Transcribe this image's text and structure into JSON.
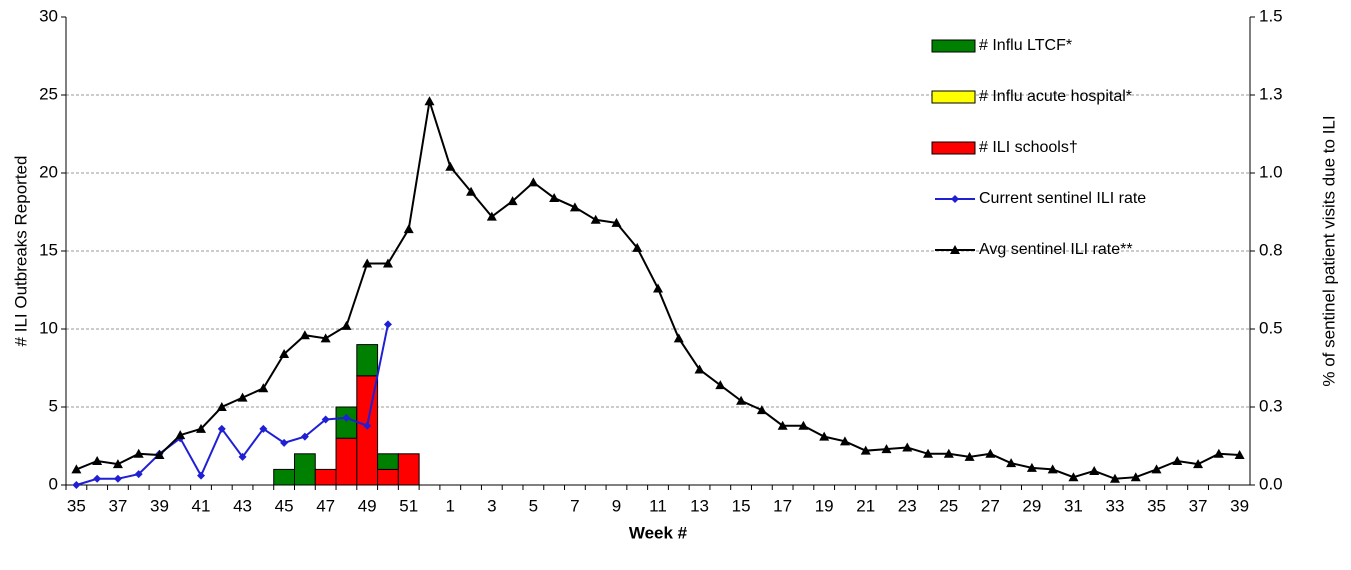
{
  "chart_data": {
    "type": "combo",
    "x_label": "Week #",
    "y_label": "# ILI Outbreaks Reported",
    "y2_label": "% of sentinel patient visits due to ILI",
    "y2_color": "#1f1fd6",
    "categories": [
      "35",
      null,
      "37",
      null,
      "39",
      null,
      "41",
      null,
      "43",
      null,
      "45",
      null,
      "47",
      null,
      "49",
      null,
      "51",
      null,
      "1",
      null,
      "3",
      null,
      "5",
      null,
      "7",
      null,
      "9",
      null,
      "11",
      null,
      "13",
      null,
      "15",
      null,
      "17",
      null,
      "19",
      null,
      "21",
      null,
      "23",
      null,
      "25",
      null,
      "27",
      null,
      "29",
      null,
      "31",
      null,
      "33",
      null,
      "35",
      null,
      "37",
      null,
      "39"
    ],
    "ylim": [
      0,
      30
    ],
    "yticks": [
      0,
      5,
      10,
      15,
      20,
      25,
      30
    ],
    "y2lim": [
      0,
      1.5
    ],
    "y2ticks": [
      {
        "value": 0,
        "label": "0.0"
      },
      {
        "value": 0.25,
        "label": "0.3"
      },
      {
        "value": 0.5,
        "label": "0.5"
      },
      {
        "value": 0.75,
        "label": "0.8"
      },
      {
        "value": 1,
        "label": "1.0"
      },
      {
        "value": 1.25,
        "label": "1.3"
      },
      1.5
    ],
    "grid": true,
    "legend": "top-right",
    "series": [
      {
        "name": "# Influ LTCF*",
        "type": "bar",
        "color": "#008000",
        "values": [
          null,
          null,
          null,
          null,
          null,
          null,
          null,
          null,
          null,
          null,
          1,
          2,
          null,
          2,
          2,
          1,
          null,
          null,
          null,
          null,
          null,
          null,
          null,
          null,
          null,
          null,
          null,
          null,
          null,
          null,
          null,
          null,
          null,
          null,
          null,
          null,
          null,
          null,
          null,
          null,
          null,
          null,
          null,
          null,
          null,
          null,
          null,
          null,
          null,
          null,
          null,
          null,
          null,
          null,
          null,
          null,
          null
        ]
      },
      {
        "name": "# Influ acute hospital*",
        "type": "bar",
        "color": "#ffff00",
        "values": [
          null,
          null,
          null,
          null,
          null,
          null,
          null,
          null,
          null,
          null,
          null,
          null,
          null,
          null,
          null,
          null,
          null,
          null,
          null,
          null,
          null,
          null,
          null,
          null,
          null,
          null,
          null,
          null,
          null,
          null,
          null,
          null,
          null,
          null,
          null,
          null,
          null,
          null,
          null,
          null,
          null,
          null,
          null,
          null,
          null,
          null,
          null,
          null,
          null,
          null,
          null,
          null,
          null,
          null,
          null,
          null,
          null
        ]
      },
      {
        "name": "# ILI schools†",
        "type": "bar",
        "color": "#ff0000",
        "values": [
          null,
          null,
          null,
          null,
          null,
          null,
          null,
          null,
          null,
          null,
          null,
          null,
          1,
          3,
          7,
          1,
          2,
          null,
          null,
          null,
          null,
          null,
          null,
          null,
          null,
          null,
          null,
          null,
          null,
          null,
          null,
          null,
          null,
          null,
          null,
          null,
          null,
          null,
          null,
          null,
          null,
          null,
          null,
          null,
          null,
          null,
          null,
          null,
          null,
          null,
          null,
          null,
          null,
          null,
          null,
          null,
          null
        ]
      },
      {
        "name": "Current sentinel ILI rate",
        "type": "line",
        "axis": "y2",
        "marker": "diamond",
        "color": "#1f1fd6",
        "values": [
          0,
          0.02,
          0.02,
          0.035,
          0.1,
          0.15,
          0.03,
          0.18,
          0.09,
          0.18,
          0.135,
          0.155,
          0.21,
          0.215,
          0.19,
          0.515,
          null,
          null,
          null,
          null,
          null,
          null,
          null,
          null,
          null,
          null,
          null,
          null,
          null,
          null,
          null,
          null,
          null,
          null,
          null,
          null,
          null,
          null,
          null,
          null,
          null,
          null,
          null,
          null,
          null,
          null,
          null,
          null,
          null,
          null,
          null,
          null,
          null,
          null,
          null,
          null,
          null
        ]
      },
      {
        "name": "Avg sentinel ILI rate**",
        "type": "line",
        "axis": "y2",
        "marker": "triangle",
        "color": "#000000",
        "values": [
          0.05,
          0.077,
          0.067,
          0.1,
          0.096,
          0.16,
          0.18,
          0.25,
          0.28,
          0.31,
          0.42,
          0.48,
          0.47,
          0.51,
          0.71,
          0.71,
          0.82,
          1.23,
          1.02,
          0.94,
          0.86,
          0.91,
          0.97,
          0.92,
          0.89,
          0.85,
          0.84,
          0.76,
          0.63,
          0.47,
          0.37,
          0.32,
          0.27,
          0.24,
          0.19,
          0.19,
          0.155,
          0.14,
          0.11,
          0.115,
          0.12,
          0.1,
          0.1,
          0.09,
          0.1,
          0.07,
          0.055,
          0.05,
          0.025,
          0.045,
          0.02,
          0.025,
          0.05,
          0.077,
          0.067,
          0.1,
          0.096
        ]
      }
    ]
  }
}
